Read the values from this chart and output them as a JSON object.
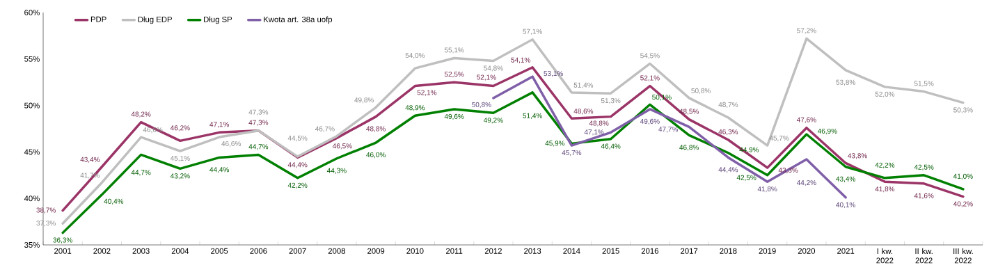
{
  "chart_data": {
    "type": "line",
    "categories": [
      "2001",
      "2002",
      "2003",
      "2004",
      "2005",
      "2006",
      "2007",
      "2008",
      "2009",
      "2010",
      "2011",
      "2012",
      "2013",
      "2014",
      "2015",
      "2016",
      "2017",
      "2018",
      "2019",
      "2020",
      "2021",
      "I kw. 2022",
      "II kw. 2022",
      "III kw. 2022"
    ],
    "series": [
      {
        "name": "PDP",
        "color": "#9b3467",
        "values": [
          38.7,
          43.4,
          48.2,
          46.2,
          47.1,
          47.3,
          44.4,
          46.5,
          48.8,
          52.1,
          52.5,
          52.1,
          54.1,
          48.6,
          48.8,
          52.1,
          48.5,
          46.3,
          43.3,
          47.6,
          43.8,
          41.8,
          41.6,
          40.2
        ],
        "value_labels": [
          "38,7%",
          "43,4%",
          "48,2%",
          "46,2%",
          "47,1%",
          "47,3%",
          "44,4%",
          "46,5%",
          "48,8%",
          "52,1%",
          "52,5%",
          "52,1%",
          "54,1%",
          "48,6%",
          "48,8%",
          "52,1%",
          "48,5%",
          "46,3%",
          "43,3%",
          "47,6%",
          "43,8%",
          "41,8%",
          "41,6%",
          "40,2%"
        ]
      },
      {
        "name": "Dług EDP",
        "color": "#bfbfbf",
        "values": [
          37.3,
          41.7,
          46.6,
          45.1,
          46.6,
          47.3,
          44.5,
          46.7,
          49.8,
          54.0,
          55.1,
          54.8,
          57.1,
          51.4,
          51.3,
          54.5,
          50.8,
          48.7,
          45.7,
          57.2,
          53.8,
          52.0,
          51.5,
          50.3
        ],
        "value_labels": [
          "37,3%",
          "41,7%",
          "46,6%",
          "45,1%",
          "46,6%",
          "47,3%",
          "44,5%",
          "46,7%",
          "49,8%",
          "54,0%",
          "55,1%",
          "54,8%",
          "57,1%",
          "51,4%",
          "51,3%",
          "54,5%",
          "50,8%",
          "48,7%",
          "45,7%",
          "57,2%",
          "53,8%",
          "52,0%",
          "51,5%",
          "50,3%"
        ]
      },
      {
        "name": "Dług SP",
        "color": "#008000",
        "values": [
          36.3,
          40.4,
          44.7,
          43.2,
          44.4,
          44.7,
          42.2,
          44.3,
          46.0,
          48.9,
          49.6,
          49.2,
          51.4,
          45.9,
          46.4,
          50.1,
          46.8,
          44.9,
          42.5,
          46.9,
          43.4,
          42.2,
          42.5,
          41.0
        ],
        "value_labels": [
          "36,3%",
          "40,4%",
          "44,7%",
          "43,2%",
          "44,4%",
          "44,7%",
          "42,2%",
          "44,3%",
          "46,0%",
          "48,9%",
          "49,6%",
          "49,2%",
          "51,4%",
          "45,9%",
          "46,4%",
          "50,1%",
          "46,8%",
          "44,9%",
          "42,5%",
          "46,9%",
          "43,4%",
          "42,2%",
          "42,5%",
          "41,0%"
        ]
      },
      {
        "name": "Kwota art. 38a uofp",
        "color": "#7f5fa8",
        "values": [
          null,
          null,
          null,
          null,
          null,
          null,
          null,
          null,
          null,
          null,
          null,
          50.8,
          53.1,
          45.7,
          47.1,
          49.6,
          47.7,
          44.4,
          41.8,
          44.2,
          40.1,
          null,
          null,
          null
        ],
        "value_labels": [
          null,
          null,
          null,
          null,
          null,
          null,
          null,
          null,
          null,
          null,
          null,
          "50,8%",
          "53,1%",
          "45,7%",
          "47,1%",
          "49,6%",
          "47,7%",
          "44,4%",
          "41,8%",
          "44,2%",
          "40,1%",
          null,
          null,
          null
        ]
      }
    ],
    "ylim": [
      35,
      60
    ],
    "yticks": [
      {
        "value": 35,
        "label": "35%"
      },
      {
        "value": 40,
        "label": "40%"
      },
      {
        "value": 45,
        "label": "45%"
      },
      {
        "value": 50,
        "label": "50%"
      },
      {
        "value": 55,
        "label": "55%"
      },
      {
        "value": 60,
        "label": "60%"
      }
    ],
    "legend": "top left",
    "grid": false,
    "marker": "none",
    "line_style": "solid"
  }
}
